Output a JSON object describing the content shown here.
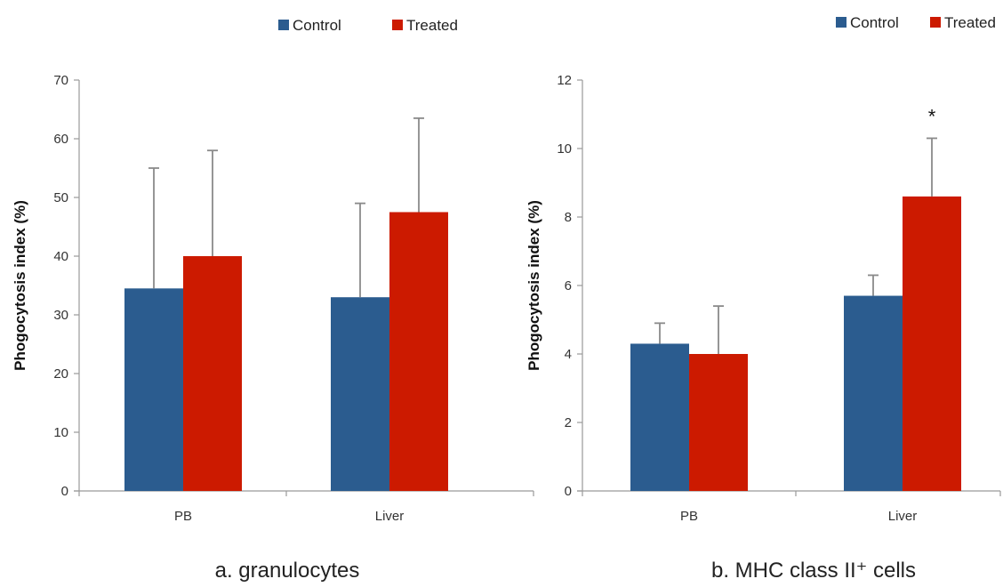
{
  "colors": {
    "control": "#2b5c8f",
    "treated": "#cc1a00",
    "error_bar": "#8a8a8a",
    "axis": "#9a9a9a"
  },
  "chart_data": [
    {
      "type": "bar",
      "caption": "a. granulocytes",
      "ylabel": "Phogocytosis index (%)",
      "xlabel": "",
      "ylim": [
        0,
        70
      ],
      "yticks": [
        0,
        10,
        20,
        30,
        40,
        50,
        60,
        70
      ],
      "legend_position": "top-center",
      "categories": [
        "PB",
        "Liver"
      ],
      "series": [
        {
          "name": "Control",
          "color": "#2b5c8f",
          "values": [
            34.5,
            33
          ],
          "error": [
            20.5,
            16
          ]
        },
        {
          "name": "Treated",
          "color": "#cc1a00",
          "values": [
            40,
            47.5
          ],
          "error": [
            18,
            16
          ]
        }
      ],
      "annotations": []
    },
    {
      "type": "bar",
      "caption": "b. MHC class II⁺ cells",
      "ylabel": "Phogocytosis index (%)",
      "xlabel": "",
      "ylim": [
        0,
        12
      ],
      "yticks": [
        0,
        2,
        4,
        6,
        8,
        10,
        12
      ],
      "legend_position": "top-right",
      "categories": [
        "PB",
        "Liver"
      ],
      "series": [
        {
          "name": "Control",
          "color": "#2b5c8f",
          "values": [
            4.3,
            5.7
          ],
          "error": [
            0.6,
            0.6
          ]
        },
        {
          "name": "Treated",
          "color": "#cc1a00",
          "values": [
            4.0,
            8.6
          ],
          "error": [
            1.4,
            1.7
          ]
        }
      ],
      "annotations": [
        {
          "text": "*",
          "category": "Liver",
          "series": "Treated"
        }
      ]
    }
  ]
}
